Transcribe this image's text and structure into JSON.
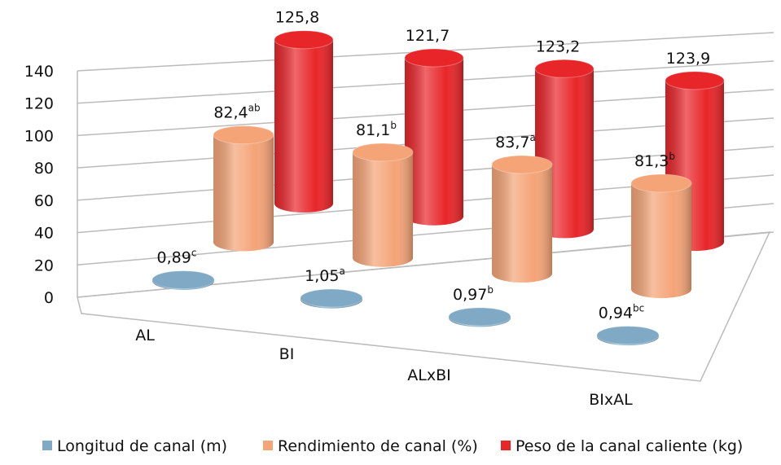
{
  "chart_data": {
    "type": "bar3d",
    "categories": [
      "AL",
      "BI",
      "ALxBI",
      "BIxAL"
    ],
    "series": [
      {
        "name": "Longitud de canal (m)",
        "color": "#7fa9c4",
        "values": [
          0.89,
          1.05,
          0.97,
          0.94
        ],
        "value_labels": [
          "0,89",
          "1,05",
          "0,97",
          "0,94"
        ],
        "superscripts": [
          "c",
          "a",
          "b",
          "bc"
        ]
      },
      {
        "name": "Rendimiento de canal (%)",
        "color": "#f4a477",
        "values": [
          82.4,
          81.1,
          83.7,
          81.3
        ],
        "value_labels": [
          "82,4",
          "81,1",
          "83,7",
          "81,3"
        ],
        "superscripts": [
          "ab",
          "b",
          "a",
          "b"
        ]
      },
      {
        "name": "Peso de la canal caliente (kg)",
        "color": "#e8262a",
        "values": [
          125.8,
          121.7,
          123.2,
          123.9
        ],
        "value_labels": [
          "125,8",
          "121,7",
          "123,2",
          "123,9"
        ]
      }
    ],
    "ylim": [
      0,
      140
    ],
    "yticks": [
      0,
      20,
      40,
      60,
      80,
      100,
      120,
      140
    ],
    "grid": true,
    "legend": "bottom"
  }
}
